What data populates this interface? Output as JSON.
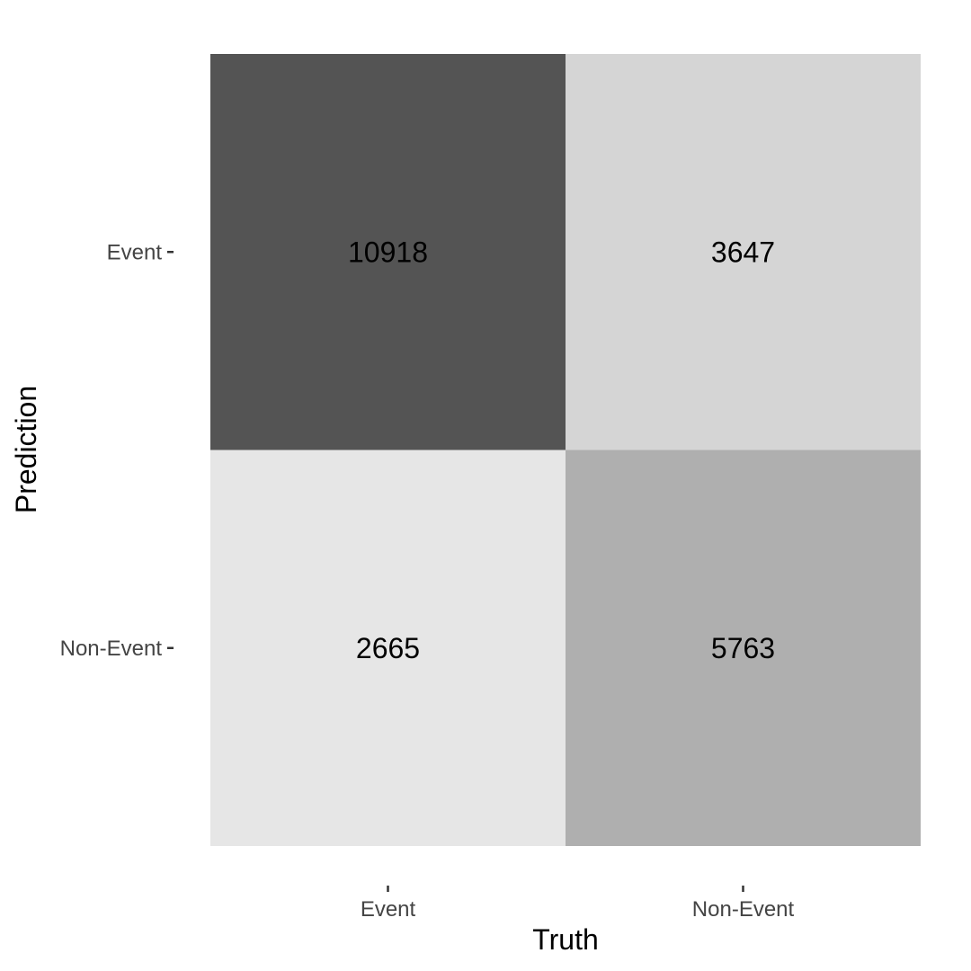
{
  "chart_data": {
    "type": "heatmap",
    "title": "",
    "xlabel": "Truth",
    "ylabel": "Prediction",
    "x_categories": [
      "Event",
      "Non-Event"
    ],
    "y_categories": [
      "Event",
      "Non-Event"
    ],
    "values": [
      [
        10918,
        3647
      ],
      [
        2665,
        5763
      ]
    ],
    "color_scale": {
      "low": "#e6e6e6",
      "high": "#545454"
    },
    "grid": false,
    "legend": "none"
  }
}
